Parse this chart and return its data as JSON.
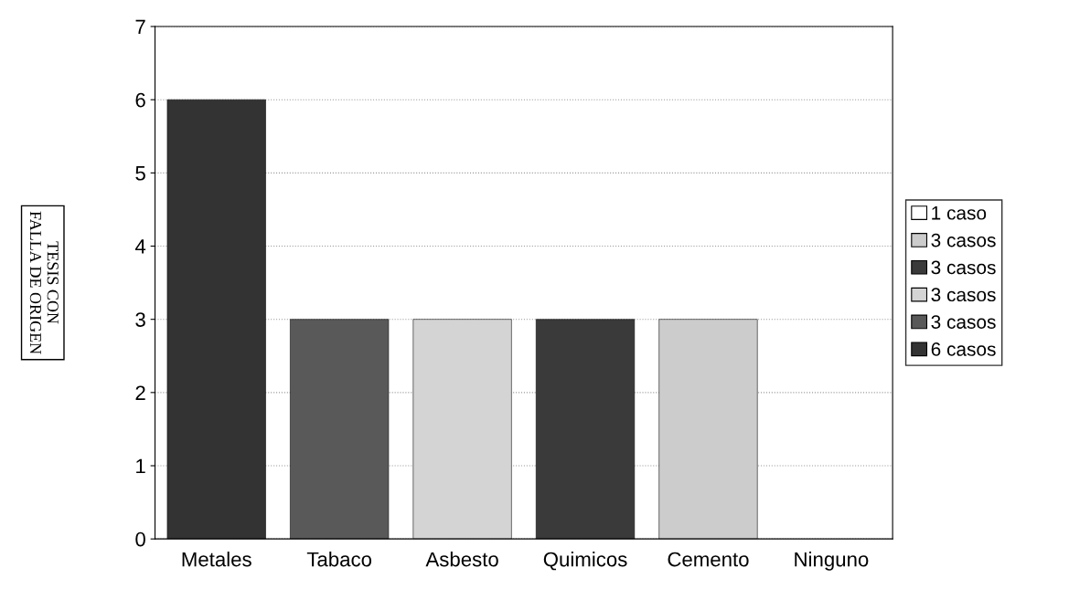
{
  "chart_data": {
    "type": "bar",
    "categories": [
      "Metales",
      "Tabaco",
      "Asbesto",
      "Quimicos",
      "Cemento",
      "Ninguno"
    ],
    "series": [
      {
        "name": "1 caso",
        "color": "#ffffff",
        "values": [
          null,
          null,
          null,
          null,
          null,
          null
        ]
      },
      {
        "name": "3 casos",
        "color": "#cccccc",
        "values": [
          null,
          null,
          null,
          null,
          3,
          null
        ]
      },
      {
        "name": "3 casos",
        "color": "#3a3a3a",
        "values": [
          null,
          null,
          null,
          3,
          null,
          null
        ]
      },
      {
        "name": "3 casos",
        "color": "#d4d4d4",
        "values": [
          null,
          null,
          3,
          null,
          null,
          null
        ]
      },
      {
        "name": "3 casos",
        "color": "#595959",
        "values": [
          null,
          3,
          null,
          null,
          null,
          null
        ]
      },
      {
        "name": "6 casos",
        "color": "#333333",
        "values": [
          6,
          null,
          null,
          null,
          null,
          null
        ]
      }
    ],
    "ylim": [
      0,
      7
    ],
    "yticks": [
      0,
      1,
      2,
      3,
      4,
      5,
      6,
      7
    ],
    "grid": "y",
    "legend": "right",
    "annotations": [
      "TESIS CON\nFALLA DE ORIGEN"
    ]
  }
}
